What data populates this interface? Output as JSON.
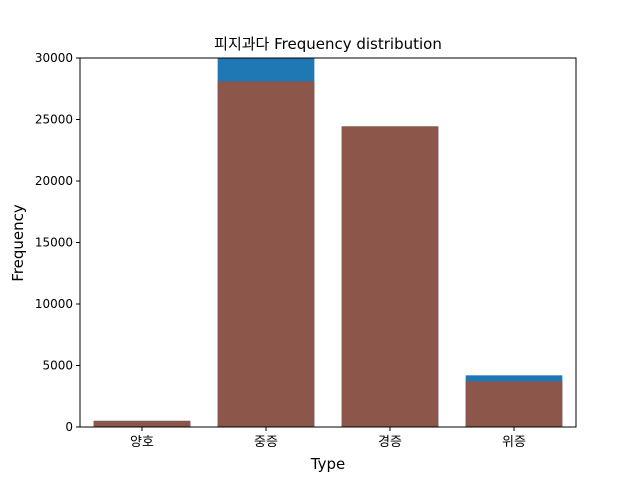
{
  "chart_data": {
    "type": "bar",
    "title": "피지과다 Frequency distribution",
    "xlabel": "Type",
    "ylabel": "Frequency",
    "categories": [
      "양호",
      "중증",
      "경증",
      "위증"
    ],
    "ylim": [
      0,
      30000
    ],
    "yticks": [
      0,
      5000,
      10000,
      15000,
      20000,
      25000,
      30000
    ],
    "grid": false,
    "series": [
      {
        "values": [
          500,
          30000,
          24400,
          4200
        ],
        "color": "#1f77b4"
      },
      {
        "values": [
          500,
          28100,
          24450,
          3700
        ],
        "color": "#8c564b"
      }
    ]
  }
}
